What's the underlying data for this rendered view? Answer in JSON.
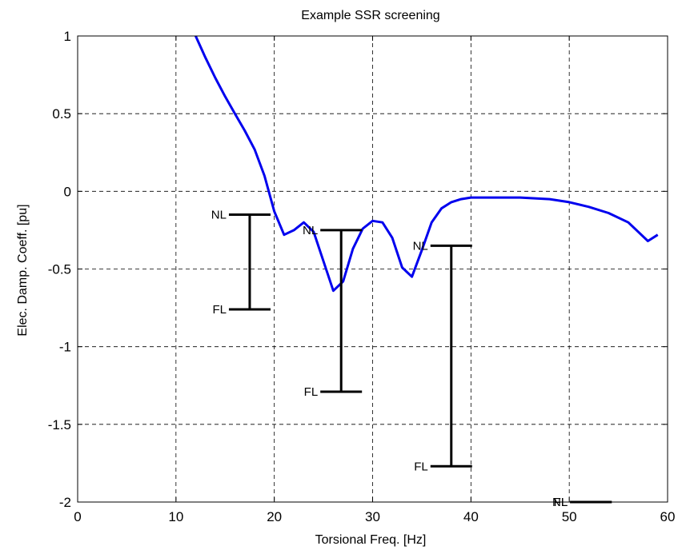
{
  "chart_data": {
    "type": "line",
    "title": "Example SSR screening",
    "xlabel": "Torsional Freq. [Hz]",
    "ylabel": "Elec. Damp. Coeff. [pu]",
    "xlim": [
      0,
      60
    ],
    "ylim": [
      -2,
      1
    ],
    "xticks": [
      0,
      10,
      20,
      30,
      40,
      50,
      60
    ],
    "yticks": [
      1,
      0.5,
      0,
      -0.5,
      -1,
      -1.5,
      -2
    ],
    "xtick_labels": [
      "0",
      "10",
      "20",
      "30",
      "40",
      "50",
      "60"
    ],
    "ytick_labels": [
      "1",
      "0.5",
      "0",
      "-0.5",
      "-1",
      "-1.5",
      "-2"
    ],
    "grid": true,
    "series": [
      {
        "color": "#0000ee",
        "x": [
          12,
          13,
          14,
          15,
          16,
          17,
          18,
          19,
          20,
          21,
          22,
          23,
          24,
          25,
          26,
          27,
          28,
          29,
          30,
          31,
          32,
          33,
          34,
          35,
          36,
          37,
          38,
          39,
          40,
          42,
          45,
          48,
          50,
          52,
          54,
          56,
          58,
          59
        ],
        "y": [
          1.0,
          0.86,
          0.73,
          0.61,
          0.5,
          0.39,
          0.27,
          0.1,
          -0.13,
          -0.28,
          -0.25,
          -0.2,
          -0.26,
          -0.45,
          -0.64,
          -0.58,
          -0.37,
          -0.24,
          -0.19,
          -0.2,
          -0.3,
          -0.49,
          -0.55,
          -0.38,
          -0.2,
          -0.11,
          -0.07,
          -0.05,
          -0.04,
          -0.04,
          -0.04,
          -0.05,
          -0.07,
          -0.1,
          -0.14,
          -0.2,
          -0.32,
          -0.28
        ]
      }
    ],
    "annotations": [
      {
        "x": 17.5,
        "nl": -0.15,
        "fl": -0.76,
        "nl_label": "NL",
        "fl_label": "FL"
      },
      {
        "x": 26.8,
        "nl": -0.25,
        "fl": -1.29,
        "nl_label": "NL",
        "fl_label": "FL"
      },
      {
        "x": 38.0,
        "nl": -0.35,
        "fl": -1.77,
        "nl_label": "NL",
        "fl_label": "FL"
      },
      {
        "x": 52.2,
        "nl": -2.0,
        "fl": -2.0,
        "nl_label": "NL",
        "fl_label": "FL"
      }
    ],
    "annotation_color": "#000000"
  }
}
